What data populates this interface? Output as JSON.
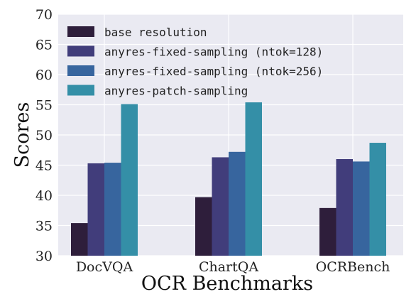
{
  "chart_data": {
    "type": "bar",
    "categories": [
      "DocVQA",
      "ChartQA",
      "OCRBench"
    ],
    "series": [
      {
        "name": "base resolution",
        "values": [
          35.4,
          39.7,
          37.9
        ],
        "color": "#2e1e3b"
      },
      {
        "name": "anyres-fixed-sampling (ntok=128)",
        "values": [
          45.3,
          46.3,
          46.0
        ],
        "color": "#413d7b"
      },
      {
        "name": "anyres-fixed-sampling (ntok=256)",
        "values": [
          45.4,
          47.2,
          45.6
        ],
        "color": "#37659e"
      },
      {
        "name": "anyres-patch-sampling",
        "values": [
          55.1,
          55.4,
          48.7
        ],
        "color": "#348fa7"
      }
    ],
    "title": "",
    "xlabel": "OCR Benchmarks",
    "ylabel": "Scores",
    "ylim": [
      30,
      70
    ],
    "yticks": [
      30,
      35,
      40,
      45,
      50,
      55,
      60,
      65,
      70
    ],
    "grid": true,
    "legend_position": "top-left",
    "background_color": "#eaeaf2",
    "grid_color": "#ffffff"
  }
}
